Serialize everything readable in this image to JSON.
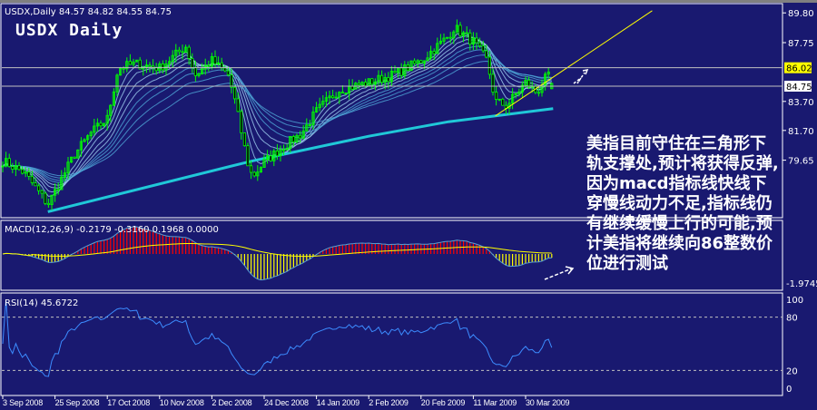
{
  "header": {
    "symbol_line": "USDX,Daily  84.57 84.82 84.55 84.75",
    "overlay_title": "USDX Daily"
  },
  "annotation": "美指目前守住在三角形下轨支撑处,预计将获得反弹,因为macd指标线快线下穿慢线动力不足,指标线仍有继续缓慢上行的可能,预计美指将继续向86整数价位进行测试",
  "colors": {
    "background": "#191970",
    "candles": "#00ff00",
    "ma_long": "#20c8d8",
    "ma_short": "#7fb8e8",
    "trendline": "#ffff00",
    "macd_pos": "#ff0000",
    "macd_neg": "#ffff00",
    "rsi": "#3c8cff"
  },
  "chart_data": [
    {
      "type": "candlestick",
      "title": "USDX,Daily",
      "ohlc_last": {
        "open": 84.57,
        "high": 84.82,
        "low": 84.55,
        "close": 84.75
      },
      "y_ticks": [
        "89.80",
        "87.75",
        "83.70",
        "81.70",
        "79.65"
      ],
      "y_tick_values": [
        89.8,
        87.75,
        83.7,
        81.7,
        79.65
      ],
      "price_markers": [
        {
          "label": "86.02",
          "value": 86.02,
          "color": "#ffff00"
        },
        {
          "label": "84.75",
          "value": 84.75,
          "color": "#ffffff"
        }
      ],
      "x_ticks": [
        "3 Sep 2008",
        "25 Sep 2008",
        "17 Oct 2008",
        "10 Nov 2008",
        "2 Dec 2008",
        "24 Dec 2008",
        "14 Jan 2009",
        "2 Feb 2009",
        "20 Feb 2009",
        "11 Mar 2009",
        "30 Mar 2009"
      ],
      "x_tick_dates": [
        "2008-09-03",
        "2008-09-25",
        "2008-10-17",
        "2008-11-10",
        "2008-12-02",
        "2008-12-24",
        "2009-01-14",
        "2009-02-02",
        "2009-02-20",
        "2009-03-11",
        "2009-03-30"
      ],
      "close_keypoints": [
        [
          "2008-09-03",
          79.6
        ],
        [
          "2008-09-12",
          78.8
        ],
        [
          "2008-09-22",
          76.6
        ],
        [
          "2008-09-25",
          77.5
        ],
        [
          "2008-10-03",
          80.0
        ],
        [
          "2008-10-10",
          81.5
        ],
        [
          "2008-10-17",
          82.5
        ],
        [
          "2008-10-22",
          86.0
        ],
        [
          "2008-10-30",
          86.3
        ],
        [
          "2008-11-10",
          86.0
        ],
        [
          "2008-11-21",
          87.5
        ],
        [
          "2008-11-25",
          85.5
        ],
        [
          "2008-12-02",
          86.5
        ],
        [
          "2008-12-09",
          85.5
        ],
        [
          "2008-12-12",
          83.5
        ],
        [
          "2008-12-17",
          79.5
        ],
        [
          "2008-12-19",
          78.5
        ],
        [
          "2008-12-24",
          79.5
        ],
        [
          "2008-12-31",
          80.5
        ],
        [
          "2009-01-08",
          81.5
        ],
        [
          "2009-01-14",
          83.0
        ],
        [
          "2009-01-22",
          84.5
        ],
        [
          "2009-02-02",
          85.0
        ],
        [
          "2009-02-10",
          85.5
        ],
        [
          "2009-02-20",
          86.5
        ],
        [
          "2009-03-02",
          88.2
        ],
        [
          "2009-03-04",
          88.8
        ],
        [
          "2009-03-11",
          87.8
        ],
        [
          "2009-03-16",
          86.5
        ],
        [
          "2009-03-19",
          83.7
        ],
        [
          "2009-03-23",
          83.4
        ],
        [
          "2009-03-30",
          85.0
        ],
        [
          "2009-04-03",
          84.3
        ],
        [
          "2009-04-07",
          85.5
        ],
        [
          "2009-04-09",
          84.75
        ]
      ],
      "long_ma": [
        [
          "2008-09-22",
          76.1
        ],
        [
          "2008-12-19",
          79.6
        ],
        [
          "2009-02-02",
          81.3
        ],
        [
          "2009-03-02",
          82.3
        ],
        [
          "2009-04-09",
          83.2
        ]
      ],
      "trendline": [
        [
          "2009-03-19",
          82.7
        ],
        [
          "2009-05-15",
          89.95
        ]
      ]
    },
    {
      "type": "macd",
      "label": "MACD(12,26,9) -0.2179 -0.3160 0.1968 0.0000",
      "y_ticks": [
        "-1.9745"
      ],
      "y_tick_values": [
        -1.9745
      ]
    },
    {
      "type": "line",
      "label": "RSI(14) 45.6722",
      "y_ticks": [
        "100",
        "80",
        "20",
        "0"
      ],
      "y_tick_values": [
        100,
        80,
        20,
        0
      ],
      "levels": [
        80,
        20
      ]
    }
  ]
}
